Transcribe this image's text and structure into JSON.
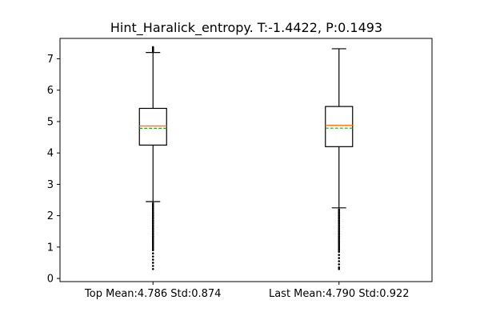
{
  "chart_data": {
    "type": "box",
    "title": "Hint_Haralick_entropy. T:-1.4422, P:0.1493",
    "ylim": [
      -0.1,
      7.65
    ],
    "yticks": [
      0,
      1,
      2,
      3,
      4,
      5,
      6,
      7
    ],
    "grid": false,
    "boxes": [
      {
        "label": "Top Mean:4.786 Std:0.874",
        "whisker_low": 2.45,
        "q1": 4.25,
        "median": 4.86,
        "mean": 4.786,
        "q3": 5.42,
        "whisker_high": 7.2,
        "fliers_high": [
          7.24,
          7.28,
          7.31,
          7.34,
          7.37
        ],
        "fliers_low": [
          0.3,
          0.4,
          0.5,
          0.6,
          0.7,
          0.8,
          0.9,
          0.95,
          1.0,
          1.05,
          1.1,
          1.15,
          1.2,
          1.25,
          1.3,
          1.35,
          1.4,
          1.45,
          1.5,
          1.55,
          1.6,
          1.65,
          1.7,
          1.75,
          1.8,
          1.85,
          1.9,
          1.95,
          2.0,
          2.05,
          2.1,
          2.15,
          2.2,
          2.25,
          2.3,
          2.35,
          2.4
        ]
      },
      {
        "label": "Last Mean:4.790 Std:0.922",
        "whisker_low": 2.25,
        "q1": 4.2,
        "median": 4.88,
        "mean": 4.79,
        "q3": 5.48,
        "whisker_high": 7.32,
        "fliers_high": [],
        "fliers_low": [
          0.3,
          0.35,
          0.45,
          0.55,
          0.65,
          0.75,
          0.85,
          0.9,
          0.95,
          1.0,
          1.05,
          1.1,
          1.15,
          1.2,
          1.25,
          1.3,
          1.35,
          1.4,
          1.45,
          1.5,
          1.55,
          1.6,
          1.65,
          1.7,
          1.75,
          1.8,
          1.85,
          1.9,
          1.95,
          2.0,
          2.05,
          2.1,
          2.15,
          2.2
        ]
      }
    ]
  }
}
